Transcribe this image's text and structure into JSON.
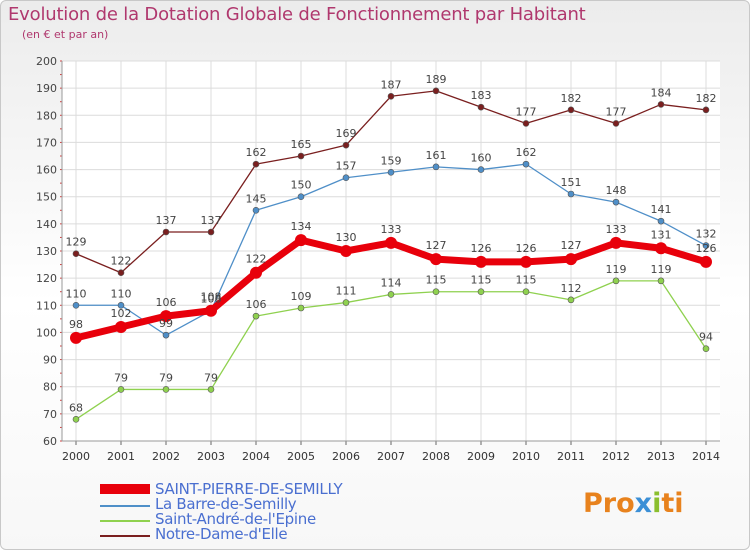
{
  "title": "Evolution de la Dotation Globale de Fonctionnement par Habitant",
  "subtitle": "(en € et par an)",
  "logo": {
    "text": "Proxiti",
    "colors": [
      "#e8821d",
      "#3b8fd6",
      "#8bbf2e"
    ]
  },
  "chart_data": {
    "type": "line",
    "x": [
      "2000",
      "2001",
      "2002",
      "2003",
      "2004",
      "2005",
      "2006",
      "2007",
      "2008",
      "2009",
      "2010",
      "2011",
      "2012",
      "2013",
      "2014"
    ],
    "ylim": [
      60,
      200
    ],
    "yticks": [
      60,
      70,
      80,
      90,
      100,
      110,
      120,
      130,
      140,
      150,
      160,
      170,
      180,
      190,
      200
    ],
    "grid": true,
    "legend_position": "bottom-left",
    "series": [
      {
        "name": "SAINT-PIERRE-DE-SEMILLY",
        "color": "#e8000b",
        "values": [
          98,
          102,
          106,
          108,
          122,
          134,
          130,
          133,
          127,
          126,
          126,
          127,
          133,
          131,
          126
        ]
      },
      {
        "name": "La Barre-de-Semilly",
        "color": "#4f8fc8",
        "values": [
          110,
          110,
          99,
          108,
          145,
          150,
          157,
          159,
          161,
          160,
          162,
          151,
          148,
          141,
          132
        ]
      },
      {
        "name": "Saint-André-de-l'Epine",
        "color": "#8fd14f",
        "values": [
          68,
          79,
          79,
          79,
          106,
          109,
          111,
          114,
          115,
          115,
          115,
          112,
          119,
          119,
          94
        ]
      },
      {
        "name": "Notre-Dame-d'Elle",
        "color": "#7a1f1f",
        "values": [
          129,
          122,
          137,
          137,
          162,
          165,
          169,
          187,
          189,
          183,
          177,
          182,
          177,
          184,
          182
        ]
      }
    ]
  }
}
